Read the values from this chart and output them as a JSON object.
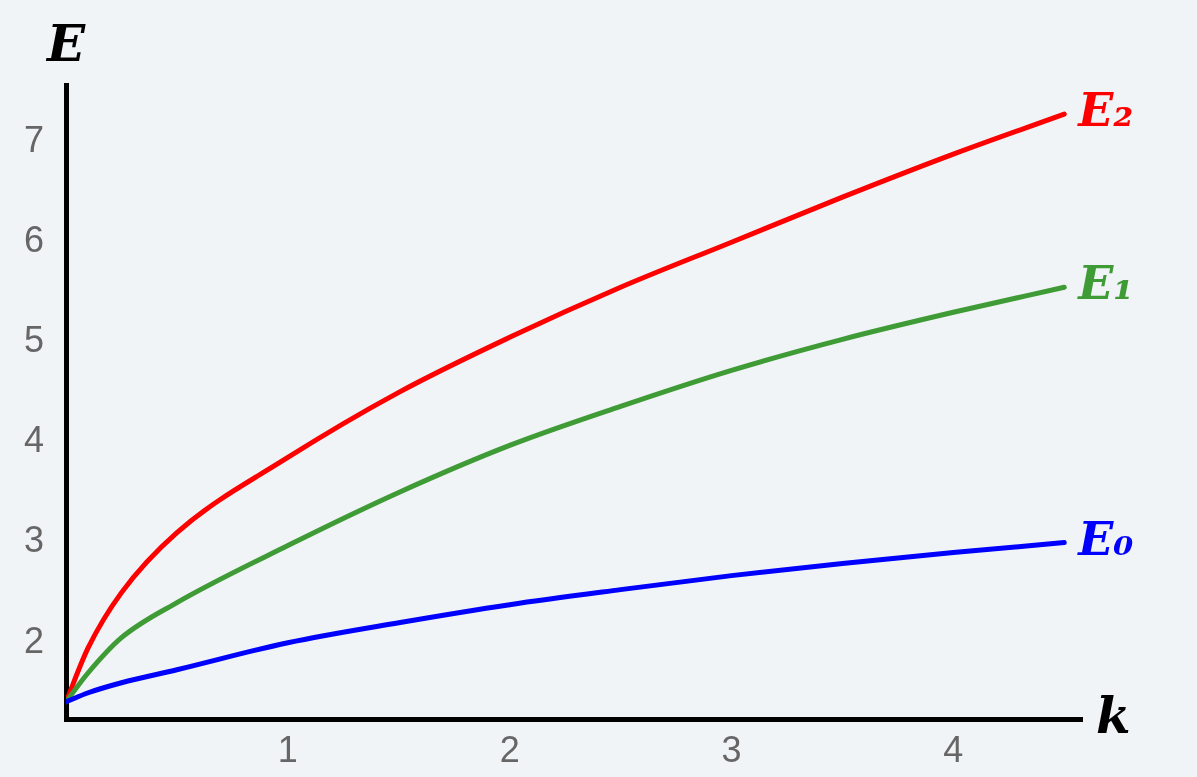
{
  "chart_data": {
    "type": "line",
    "xlabel": "k",
    "ylabel": "E",
    "xlim": [
      0,
      4.58
    ],
    "ylim": [
      1.23,
      7.57
    ],
    "xticks": [
      1,
      2,
      3,
      4
    ],
    "yticks": [
      2,
      3,
      4,
      5,
      6,
      7
    ],
    "grid": false,
    "legend": false,
    "marker": "none",
    "line_style": "solid",
    "x": [
      0,
      0.1,
      0.25,
      0.5,
      1,
      1.5,
      2,
      2.5,
      3,
      3.5,
      4,
      4.5
    ],
    "series": [
      {
        "name": "E₀",
        "color": "#0000ff",
        "values": [
          1.41,
          1.5,
          1.6,
          1.73,
          2.0,
          2.2,
          2.38,
          2.53,
          2.67,
          2.79,
          2.9,
          3.0
        ]
      },
      {
        "name": "E₁",
        "color": "#3f9b35",
        "values": [
          1.41,
          1.7,
          2.05,
          2.4,
          2.97,
          3.5,
          3.97,
          4.36,
          4.72,
          5.03,
          5.3,
          5.55
        ]
      },
      {
        "name": "E₂",
        "color": "#ff0000",
        "values": [
          1.41,
          1.95,
          2.5,
          3.1,
          3.85,
          4.5,
          5.05,
          5.55,
          6.0,
          6.45,
          6.88,
          7.28
        ]
      }
    ]
  }
}
